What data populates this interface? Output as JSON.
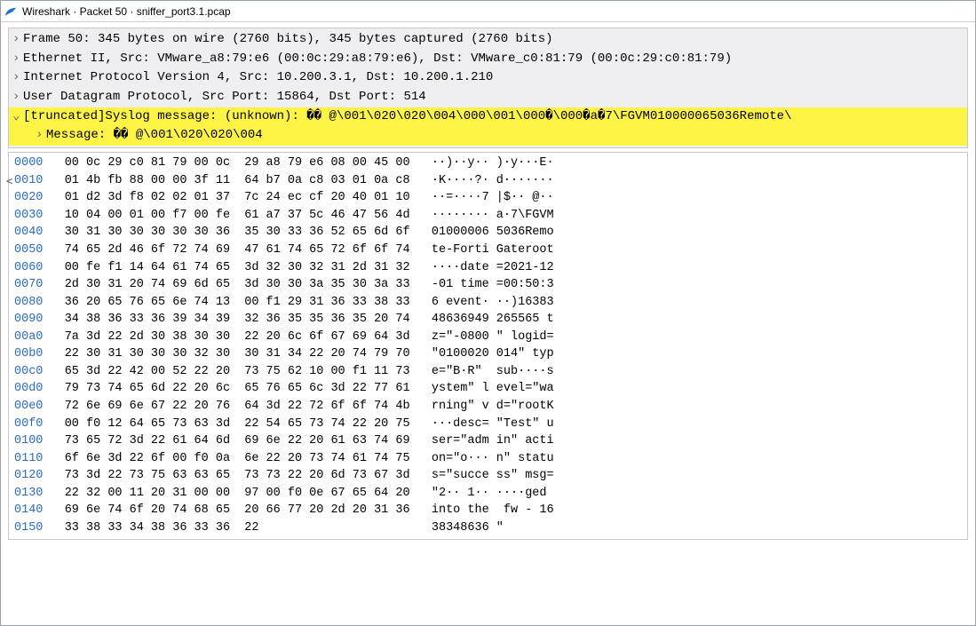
{
  "window": {
    "title": "Wireshark · Packet 50 · sniffer_port3.1.pcap"
  },
  "tree": {
    "rows": [
      {
        "twisty": "›",
        "hl": false,
        "indent": 0,
        "text": "Frame 50: 345 bytes on wire (2760 bits), 345 bytes captured (2760 bits)"
      },
      {
        "twisty": "›",
        "hl": false,
        "indent": 0,
        "text": "Ethernet II, Src: VMware_a8:79:e6 (00:0c:29:a8:79:e6), Dst: VMware_c0:81:79 (00:0c:29:c0:81:79)"
      },
      {
        "twisty": "›",
        "hl": false,
        "indent": 0,
        "text": "Internet Protocol Version 4, Src: 10.200.3.1, Dst: 10.200.1.210"
      },
      {
        "twisty": "›",
        "hl": false,
        "indent": 0,
        "text": "User Datagram Protocol, Src Port: 15864, Dst Port: 514"
      },
      {
        "twisty": "⌄",
        "hl": true,
        "indent": 0,
        "text": "[truncated]Syslog message: (unknown): �� @\\001\\020\\020\\004\\000\\001\\000�\\000�a�7\\FGVM010000065036Remote\\"
      },
      {
        "twisty": "›",
        "hl": true,
        "indent": 1,
        "text": "Message: �� @\\001\\020\\020\\004"
      }
    ]
  },
  "hex": {
    "cols": {
      "offset_width": 4
    },
    "rows": [
      {
        "off": "0000",
        "h1": "00 0c 29 c0 81 79 00 0c",
        "h2": "29 a8 79 e6 08 00 45 00",
        "a": "··)··y·· )·y···E·"
      },
      {
        "off": "0010",
        "h1": "01 4b fb 88 00 00 3f 11",
        "h2": "64 b7 0a c8 03 01 0a c8",
        "a": "·K····?· d·······"
      },
      {
        "off": "0020",
        "h1": "01 d2 3d f8 02 02 01 37",
        "h2": "7c 24 ec cf 20 40 01 10",
        "a": "··=····7 |$·· @··"
      },
      {
        "off": "0030",
        "h1": "10 04 00 01 00 f7 00 fe",
        "h2": "61 a7 37 5c 46 47 56 4d",
        "a": "········ a·7\\FGVM"
      },
      {
        "off": "0040",
        "h1": "30 31 30 30 30 30 30 36",
        "h2": "35 30 33 36 52 65 6d 6f",
        "a": "01000006 5036Remo"
      },
      {
        "off": "0050",
        "h1": "74 65 2d 46 6f 72 74 69",
        "h2": "47 61 74 65 72 6f 6f 74",
        "a": "te-Forti Gateroot"
      },
      {
        "off": "0060",
        "h1": "00 fe f1 14 64 61 74 65",
        "h2": "3d 32 30 32 31 2d 31 32",
        "a": "····date =2021-12"
      },
      {
        "off": "0070",
        "h1": "2d 30 31 20 74 69 6d 65",
        "h2": "3d 30 30 3a 35 30 3a 33",
        "a": "-01 time =00:50:3"
      },
      {
        "off": "0080",
        "h1": "36 20 65 76 65 6e 74 13",
        "h2": "00 f1 29 31 36 33 38 33",
        "a": "6 event· ··)16383"
      },
      {
        "off": "0090",
        "h1": "34 38 36 33 36 39 34 39",
        "h2": "32 36 35 35 36 35 20 74",
        "a": "48636949 265565 t"
      },
      {
        "off": "00a0",
        "h1": "7a 3d 22 2d 30 38 30 30",
        "h2": "22 20 6c 6f 67 69 64 3d",
        "a": "z=\"-0800 \" logid="
      },
      {
        "off": "00b0",
        "h1": "22 30 31 30 30 30 32 30",
        "h2": "30 31 34 22 20 74 79 70",
        "a": "\"0100020 014\" typ"
      },
      {
        "off": "00c0",
        "h1": "65 3d 22 42 00 52 22 20",
        "h2": "73 75 62 10 00 f1 11 73",
        "a": "e=\"B·R\"  sub····s"
      },
      {
        "off": "00d0",
        "h1": "79 73 74 65 6d 22 20 6c",
        "h2": "65 76 65 6c 3d 22 77 61",
        "a": "ystem\" l evel=\"wa"
      },
      {
        "off": "00e0",
        "h1": "72 6e 69 6e 67 22 20 76",
        "h2": "64 3d 22 72 6f 6f 74 4b",
        "a": "rning\" v d=\"rootK"
      },
      {
        "off": "00f0",
        "h1": "00 f0 12 64 65 73 63 3d",
        "h2": "22 54 65 73 74 22 20 75",
        "a": "···desc= \"Test\" u"
      },
      {
        "off": "0100",
        "h1": "73 65 72 3d 22 61 64 6d",
        "h2": "69 6e 22 20 61 63 74 69",
        "a": "ser=\"adm in\" acti"
      },
      {
        "off": "0110",
        "h1": "6f 6e 3d 22 6f 00 f0 0a",
        "h2": "6e 22 20 73 74 61 74 75",
        "a": "on=\"o··· n\" statu"
      },
      {
        "off": "0120",
        "h1": "73 3d 22 73 75 63 63 65",
        "h2": "73 73 22 20 6d 73 67 3d",
        "a": "s=\"succe ss\" msg="
      },
      {
        "off": "0130",
        "h1": "22 32 00 11 20 31 00 00",
        "h2": "97 00 f0 0e 67 65 64 20",
        "a": "\"2·· 1·· ····ged "
      },
      {
        "off": "0140",
        "h1": "69 6e 74 6f 20 74 68 65",
        "h2": "20 66 77 20 2d 20 31 36",
        "a": "into the  fw - 16"
      },
      {
        "off": "0150",
        "h1": "33 38 33 34 38 36 33 36",
        "h2": "22",
        "a": "38348636 \""
      }
    ]
  }
}
